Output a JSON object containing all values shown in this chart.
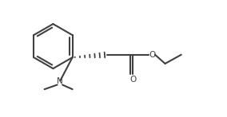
{
  "background": "#ffffff",
  "line_color": "#404040",
  "line_width": 1.5,
  "fig_width": 2.84,
  "fig_height": 1.47,
  "dpi": 100,
  "xlim": [
    0,
    10
  ],
  "ylim": [
    0,
    5.2
  ]
}
